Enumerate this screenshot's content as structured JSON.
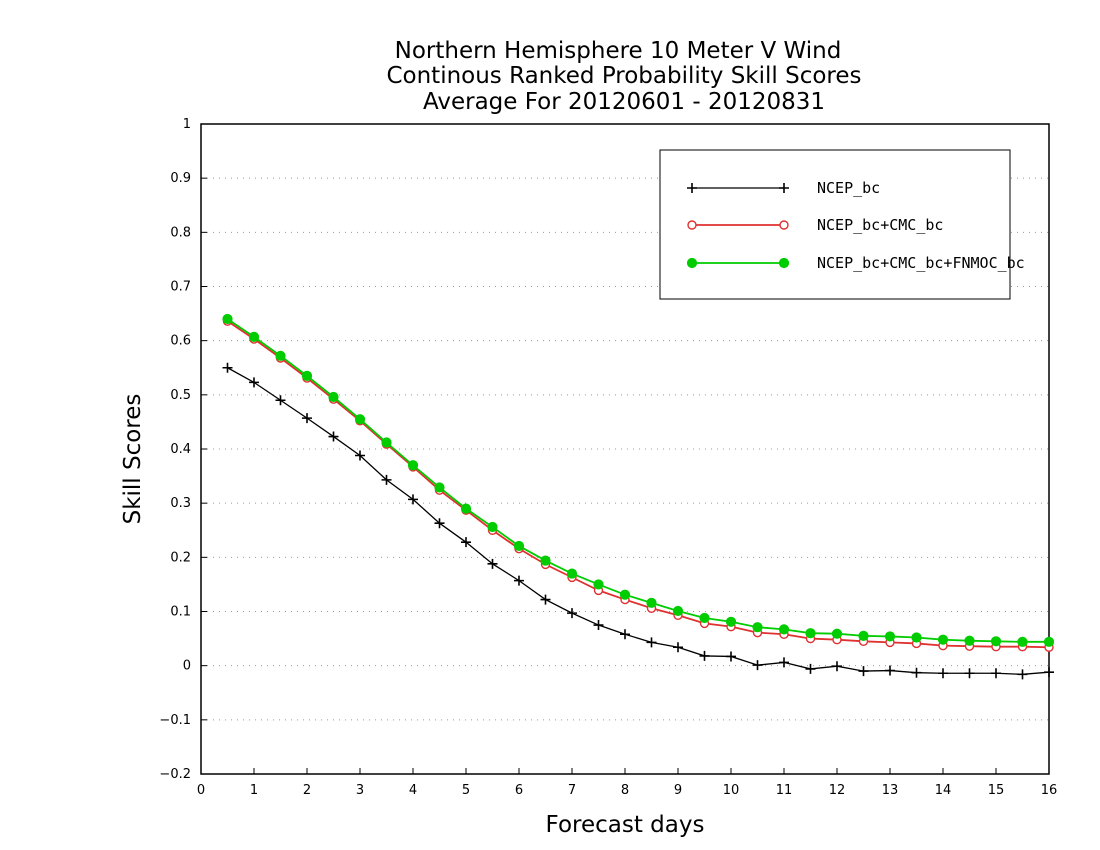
{
  "chart_data": {
    "type": "line",
    "title_lines": [
      "Northern Hemisphere 10 Meter V Wind",
      "Continous Ranked Probability Skill Scores",
      "Average For 20120601 - 20120831"
    ],
    "xlabel": "Forecast days",
    "ylabel": "Skill Scores",
    "xlim": [
      0,
      16
    ],
    "ylim": [
      -0.2,
      1
    ],
    "xticks": [
      "0",
      "1",
      "2",
      "3",
      "4",
      "5",
      "6",
      "7",
      "8",
      "9",
      "10",
      "11",
      "12",
      "13",
      "14",
      "15",
      "16"
    ],
    "yticks": [
      "−0.2",
      "−0.1",
      "0",
      "0.1",
      "0.2",
      "0.3",
      "0.4",
      "0.5",
      "0.6",
      "0.7",
      "0.8",
      "0.9",
      "1"
    ],
    "grid": "horizontal dotted",
    "legend_position": "top-right",
    "x": [
      0.5,
      1,
      1.5,
      2,
      2.5,
      3,
      3.5,
      4,
      4.5,
      5,
      5.5,
      6,
      6.5,
      7,
      7.5,
      8,
      8.5,
      9,
      9.5,
      10,
      10.5,
      11,
      11.5,
      12,
      12.5,
      13,
      13.5,
      14,
      14.5,
      15,
      15.5,
      16
    ],
    "series": [
      {
        "name": "NCEP_bc",
        "color": "#000000",
        "marker": "plus",
        "values": [
          0.55,
          0.523,
          0.49,
          0.457,
          0.423,
          0.388,
          0.343,
          0.307,
          0.263,
          0.228,
          0.188,
          0.157,
          0.122,
          0.097,
          0.075,
          0.058,
          0.043,
          0.034,
          0.018,
          0.017,
          0.001,
          0.006,
          -0.006,
          -0.001,
          -0.01,
          -0.009,
          -0.013,
          -0.014,
          -0.014,
          -0.014,
          -0.016,
          -0.012
        ]
      },
      {
        "name": "NCEP_bc+CMC_bc",
        "color": "#e03030",
        "marker": "open-circle",
        "values": [
          0.636,
          0.603,
          0.568,
          0.531,
          0.492,
          0.452,
          0.409,
          0.367,
          0.324,
          0.287,
          0.25,
          0.216,
          0.187,
          0.163,
          0.139,
          0.122,
          0.106,
          0.093,
          0.078,
          0.072,
          0.061,
          0.058,
          0.05,
          0.048,
          0.045,
          0.043,
          0.041,
          0.037,
          0.036,
          0.035,
          0.035,
          0.034
        ]
      },
      {
        "name": "NCEP_bc+CMC_bc+FNMOC_bc",
        "color": "#00cc00",
        "marker": "filled-circle",
        "values": [
          0.64,
          0.607,
          0.572,
          0.535,
          0.496,
          0.455,
          0.412,
          0.37,
          0.329,
          0.29,
          0.256,
          0.221,
          0.194,
          0.17,
          0.15,
          0.131,
          0.116,
          0.101,
          0.088,
          0.081,
          0.071,
          0.067,
          0.06,
          0.059,
          0.055,
          0.054,
          0.052,
          0.048,
          0.046,
          0.045,
          0.044,
          0.044
        ]
      }
    ]
  }
}
